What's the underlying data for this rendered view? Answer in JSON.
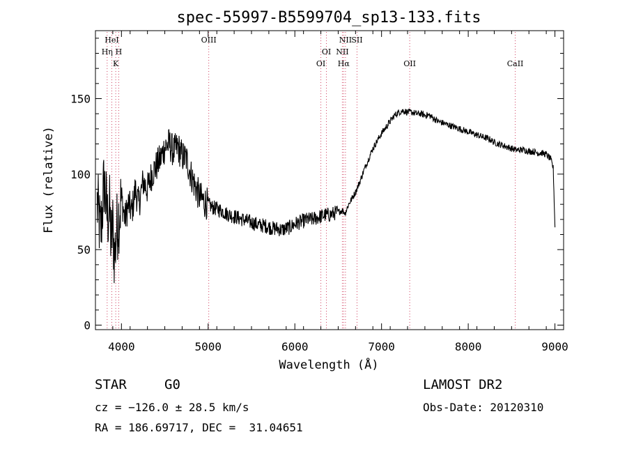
{
  "chart_data": {
    "type": "line",
    "title": "spec-55997-B5599704_sp13-133.fits",
    "xlabel": "Wavelength (Å)",
    "ylabel": "Flux (relative)",
    "xlim": [
      3700,
      9100
    ],
    "ylim": [
      -3,
      195
    ],
    "xticks": [
      4000,
      5000,
      6000,
      7000,
      8000,
      9000
    ],
    "yticks": [
      0,
      50,
      100,
      150
    ],
    "grid": false,
    "series": [
      {
        "x": [
          3720,
          3760,
          3800,
          3840,
          3860,
          3880,
          3900,
          3920,
          3940,
          3960,
          3980,
          4000,
          4040,
          4080,
          4120,
          4160,
          4200,
          4250,
          4300,
          4350,
          4400,
          4450,
          4500,
          4550,
          4600,
          4650,
          4700,
          4750,
          4800,
          4850,
          4900,
          4950,
          5000,
          5050,
          5100,
          5150,
          5200,
          5250,
          5300,
          5350,
          5400,
          5450,
          5500,
          5550,
          5600,
          5650,
          5700,
          5750,
          5800,
          5850,
          5900,
          5950,
          6000,
          6050,
          6100,
          6150,
          6200,
          6250,
          6300,
          6350,
          6400,
          6450,
          6500,
          6550,
          6580,
          6600,
          6620,
          6650,
          6700,
          6750,
          6800,
          6850,
          6900,
          6950,
          7000,
          7050,
          7100,
          7150,
          7200,
          7250,
          7300,
          7350,
          7400,
          7450,
          7500,
          7550,
          7600,
          7650,
          7700,
          7750,
          7800,
          7850,
          7900,
          7950,
          8000,
          8050,
          8100,
          8150,
          8200,
          8250,
          8300,
          8350,
          8400,
          8450,
          8500,
          8550,
          8600,
          8650,
          8700,
          8750,
          8800,
          8850,
          8900,
          8950,
          8980,
          9000
        ],
        "y": [
          80,
          60,
          95,
          70,
          80,
          55,
          65,
          45,
          60,
          70,
          75,
          85,
          70,
          80,
          75,
          90,
          80,
          95,
          90,
          100,
          105,
          110,
          118,
          120,
          115,
          118,
          112,
          110,
          100,
          92,
          85,
          82,
          80,
          78,
          77,
          76,
          74,
          73,
          72,
          71,
          70,
          69,
          68,
          67,
          66,
          66,
          65,
          64,
          64,
          63,
          64,
          65,
          67,
          68,
          69,
          70,
          70,
          71,
          72,
          73,
          73,
          74,
          75,
          76,
          74,
          77,
          80,
          83,
          88,
          95,
          103,
          110,
          117,
          122,
          127,
          131,
          135,
          139,
          141,
          142,
          141,
          141,
          140,
          140,
          139,
          139,
          137,
          135,
          134,
          133,
          132,
          131,
          130,
          129,
          128,
          127,
          126,
          125,
          124,
          123,
          121,
          120,
          119,
          118,
          117,
          116,
          116,
          116,
          115,
          115,
          114,
          114,
          113,
          110,
          104,
          65
        ]
      }
    ],
    "emission_lines": [
      {
        "label": "HeI",
        "x": 3889,
        "row": 0
      },
      {
        "label": "Hη",
        "x": 3835,
        "row": 1
      },
      {
        "label": "H",
        "x": 3969,
        "row": 1
      },
      {
        "label": "K",
        "x": 3934,
        "row": 2
      },
      {
        "label": "OIII",
        "x": 5007,
        "row": 0
      },
      {
        "label": "OI",
        "x": 6364,
        "row": 1
      },
      {
        "label": "OI",
        "x": 6300,
        "row": 2
      },
      {
        "label": "NII",
        "x": 6584,
        "row": 0
      },
      {
        "label": "SII",
        "x": 6717,
        "row": 0
      },
      {
        "label": "NII",
        "x": 6548,
        "row": 1
      },
      {
        "label": "Hα",
        "x": 6563,
        "row": 2
      },
      {
        "label": "OII",
        "x": 7325,
        "row": 2
      },
      {
        "label": "CaII",
        "x": 8542,
        "row": 2
      }
    ],
    "line_color": "#000000",
    "marker_color": "#d04060"
  },
  "info": {
    "class": "STAR",
    "subclass": "G0",
    "cz": "cz = −126.0 ± 28.5 km/s",
    "radec": "RA = 186.69717, DEC =  31.04651",
    "survey": "LAMOST DR2",
    "obsdate": "Obs-Date: 20120310"
  }
}
